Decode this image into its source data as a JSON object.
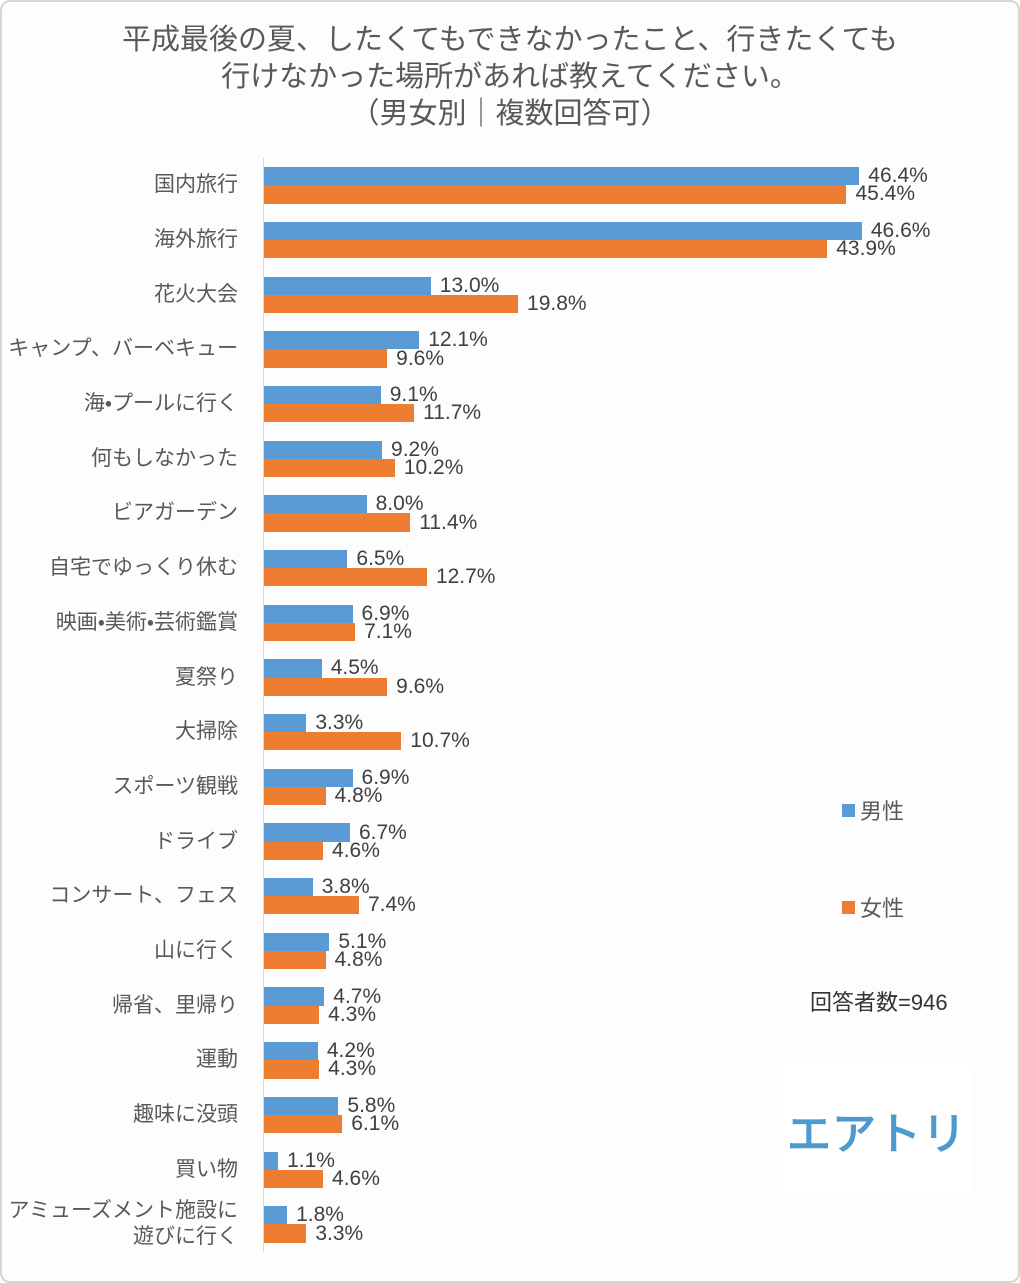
{
  "title": {
    "line1": "平成最後の夏、したくてもできなかったこと、行きたくても",
    "line2": "行けなかった場所があれば教えてください。",
    "line3": "（男女別｜複数回答可）"
  },
  "legend": {
    "male": "男性",
    "female": "女性"
  },
  "respondents": "回答者数=946",
  "logo_text": "エアトリ",
  "colors": {
    "male_bar": "#5B9BD5",
    "female_bar": "#ED7D31",
    "logo_blue": "#4E9ACD",
    "label_gray": "#595959",
    "value_gray": "#404040"
  },
  "chart_data": {
    "type": "bar",
    "orientation": "horizontal",
    "title": "平成最後の夏、したくてもできなかったこと、行きたくても行けなかった場所があれば教えてください。（男女別｜複数回答可）",
    "value_suffix": "%",
    "xlim": [
      0,
      50
    ],
    "grid": false,
    "legend_position": "right",
    "categories": [
      "国内旅行",
      "海外旅行",
      "花火大会",
      "キャンプ、バーベキュー",
      "海・プールに行く",
      "何もしなかった",
      "ビアガーデン",
      "自宅でゆっくり休む",
      "映画・美術・芸術鑑賞",
      "夏祭り",
      "大掃除",
      "スポーツ観戦",
      "ドライブ",
      "コンサート、フェス",
      "山に行く",
      "帰省、里帰り",
      "運動",
      "趣味に没頭",
      "買い物",
      "アミューズメント施設に遊びに行く"
    ],
    "series": [
      {
        "name": "男性",
        "color": "#5B9BD5",
        "values": [
          46.4,
          46.6,
          13.0,
          12.1,
          9.1,
          9.2,
          8.0,
          6.5,
          6.9,
          4.5,
          3.3,
          6.9,
          6.7,
          3.8,
          5.1,
          4.7,
          4.2,
          5.8,
          1.1,
          1.8
        ]
      },
      {
        "name": "女性",
        "color": "#ED7D31",
        "values": [
          45.4,
          43.9,
          19.8,
          9.6,
          11.7,
          10.2,
          11.4,
          12.7,
          7.1,
          9.6,
          10.7,
          4.8,
          4.6,
          7.4,
          4.8,
          4.3,
          4.3,
          6.1,
          4.6,
          3.3
        ]
      }
    ]
  }
}
